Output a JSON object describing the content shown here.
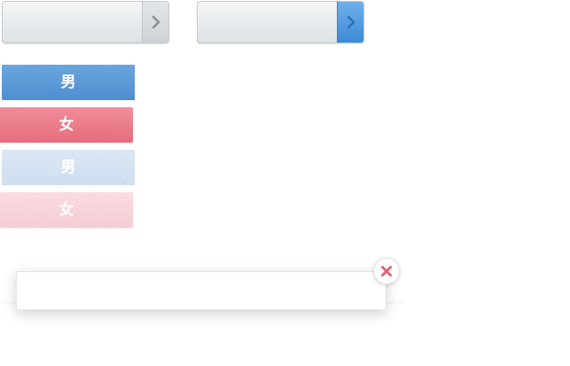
{
  "selectors": [
    {
      "value": "",
      "state": "default",
      "arrow_icon": "chevron-right-icon",
      "arrow_color": "#8a8f94"
    },
    {
      "value": "",
      "state": "active",
      "arrow_icon": "chevron-right-icon",
      "arrow_color": "#2f6fae",
      "accent": "#4a93d8"
    }
  ],
  "gender_tags": {
    "male_label": "男",
    "female_label": "女",
    "male_color": "#5a97d6",
    "female_color": "#e97a89",
    "male_light_color": "#cfe0f1",
    "female_light_color": "#f6ccd3"
  },
  "popup": {
    "message": "",
    "close_icon": "close-icon",
    "close_color": "#e0607a"
  }
}
